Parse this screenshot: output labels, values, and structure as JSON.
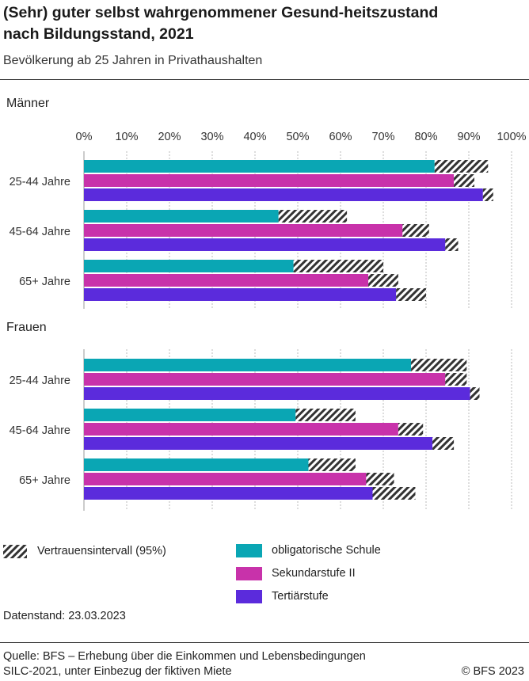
{
  "header": {
    "title": "(Sehr) guter selbst wahrgenommener Gesund-heitszustand nach Bildungsstand, 2021",
    "subtitle": "Bevölkerung ab 25 Jahren in Privathaushalten"
  },
  "colors": {
    "obligatorische_schule": "#0aa6b4",
    "sekundarstufe": "#c832aa",
    "tertiaerstufe": "#5b2bdc",
    "hatch": "#333333",
    "grid": "#bbbbbb"
  },
  "chart_data": {
    "type": "bar",
    "orientation": "horizontal",
    "xlim": [
      0,
      100
    ],
    "x_ticks": [
      "0%",
      "10%",
      "20%",
      "30%",
      "40%",
      "50%",
      "60%",
      "70%",
      "80%",
      "90%",
      "100%"
    ],
    "grid": "vertical dashed",
    "series": [
      {
        "name": "obligatorische Schule",
        "color": "#0aa6b4"
      },
      {
        "name": "Sekundarstufe II",
        "color": "#c832aa"
      },
      {
        "name": "Tertiärstufe",
        "color": "#5b2bdc"
      }
    ],
    "panels": [
      {
        "label": "Männer",
        "groups": [
          {
            "label": "25-44 Jahre",
            "bars": [
              {
                "value": 82.0,
                "ci": [
                  82.0,
                  94.5
                ]
              },
              {
                "value": 86.5,
                "ci": [
                  86.5,
                  91.3
                ]
              },
              {
                "value": 93.3,
                "ci": [
                  93.3,
                  95.7
                ]
              }
            ]
          },
          {
            "label": "45-64 Jahre",
            "bars": [
              {
                "value": 45.5,
                "ci": [
                  45.5,
                  61.5
                ]
              },
              {
                "value": 74.5,
                "ci": [
                  74.5,
                  80.7
                ]
              },
              {
                "value": 84.5,
                "ci": [
                  84.5,
                  87.5
                ]
              }
            ]
          },
          {
            "label": "65+ Jahre",
            "bars": [
              {
                "value": 49.0,
                "ci": [
                  49.0,
                  70.0
                ]
              },
              {
                "value": 66.5,
                "ci": [
                  66.5,
                  73.5
                ]
              },
              {
                "value": 73.0,
                "ci": [
                  73.0,
                  80.0
                ]
              }
            ]
          }
        ]
      },
      {
        "label": "Frauen",
        "groups": [
          {
            "label": "25-44 Jahre",
            "bars": [
              {
                "value": 76.5,
                "ci": [
                  76.5,
                  89.5
                ]
              },
              {
                "value": 84.5,
                "ci": [
                  84.5,
                  89.5
                ]
              },
              {
                "value": 90.3,
                "ci": [
                  90.3,
                  92.5
                ]
              }
            ]
          },
          {
            "label": "45-64 Jahre",
            "bars": [
              {
                "value": 49.5,
                "ci": [
                  49.5,
                  63.5
                ]
              },
              {
                "value": 73.5,
                "ci": [
                  73.5,
                  79.3
                ]
              },
              {
                "value": 81.5,
                "ci": [
                  81.5,
                  86.5
                ]
              }
            ]
          },
          {
            "label": "65+ Jahre",
            "bars": [
              {
                "value": 52.5,
                "ci": [
                  52.5,
                  63.5
                ]
              },
              {
                "value": 66.0,
                "ci": [
                  66.0,
                  72.5
                ]
              },
              {
                "value": 67.5,
                "ci": [
                  67.5,
                  77.5
                ]
              }
            ]
          }
        ]
      }
    ]
  },
  "legend": {
    "ci_label": "Vertrauensintervall (95%)",
    "items": [
      "obligatorische Schule",
      "Sekundarstufe II",
      "Tertiärstufe"
    ]
  },
  "footer": {
    "datenstand": "Datenstand: 23.03.2023",
    "source_line1": "Quelle: BFS – Erhebung über die Einkommen und Lebensbedingungen",
    "source_line2": "SILC-2021, unter Einbezug der fiktiven Miete",
    "copyright": "© BFS 2023"
  }
}
